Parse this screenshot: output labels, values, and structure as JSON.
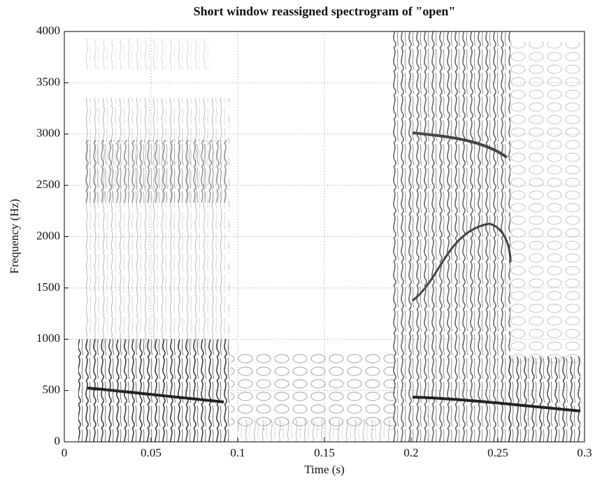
{
  "chart_data": {
    "type": "spectrogram",
    "title": "Short window reassigned spectrogram of \"open\"",
    "x_label": "Time (s)",
    "y_label": "Frequency (Hz)",
    "xlim": [
      0,
      0.3
    ],
    "xticks": [
      0,
      0.05,
      0.1,
      0.15,
      0.2,
      0.25,
      0.3
    ],
    "ylim": [
      0,
      4000
    ],
    "yticks": [
      0,
      500,
      1000,
      1500,
      2000,
      2500,
      3000,
      3500,
      4000
    ],
    "grid": true
  }
}
